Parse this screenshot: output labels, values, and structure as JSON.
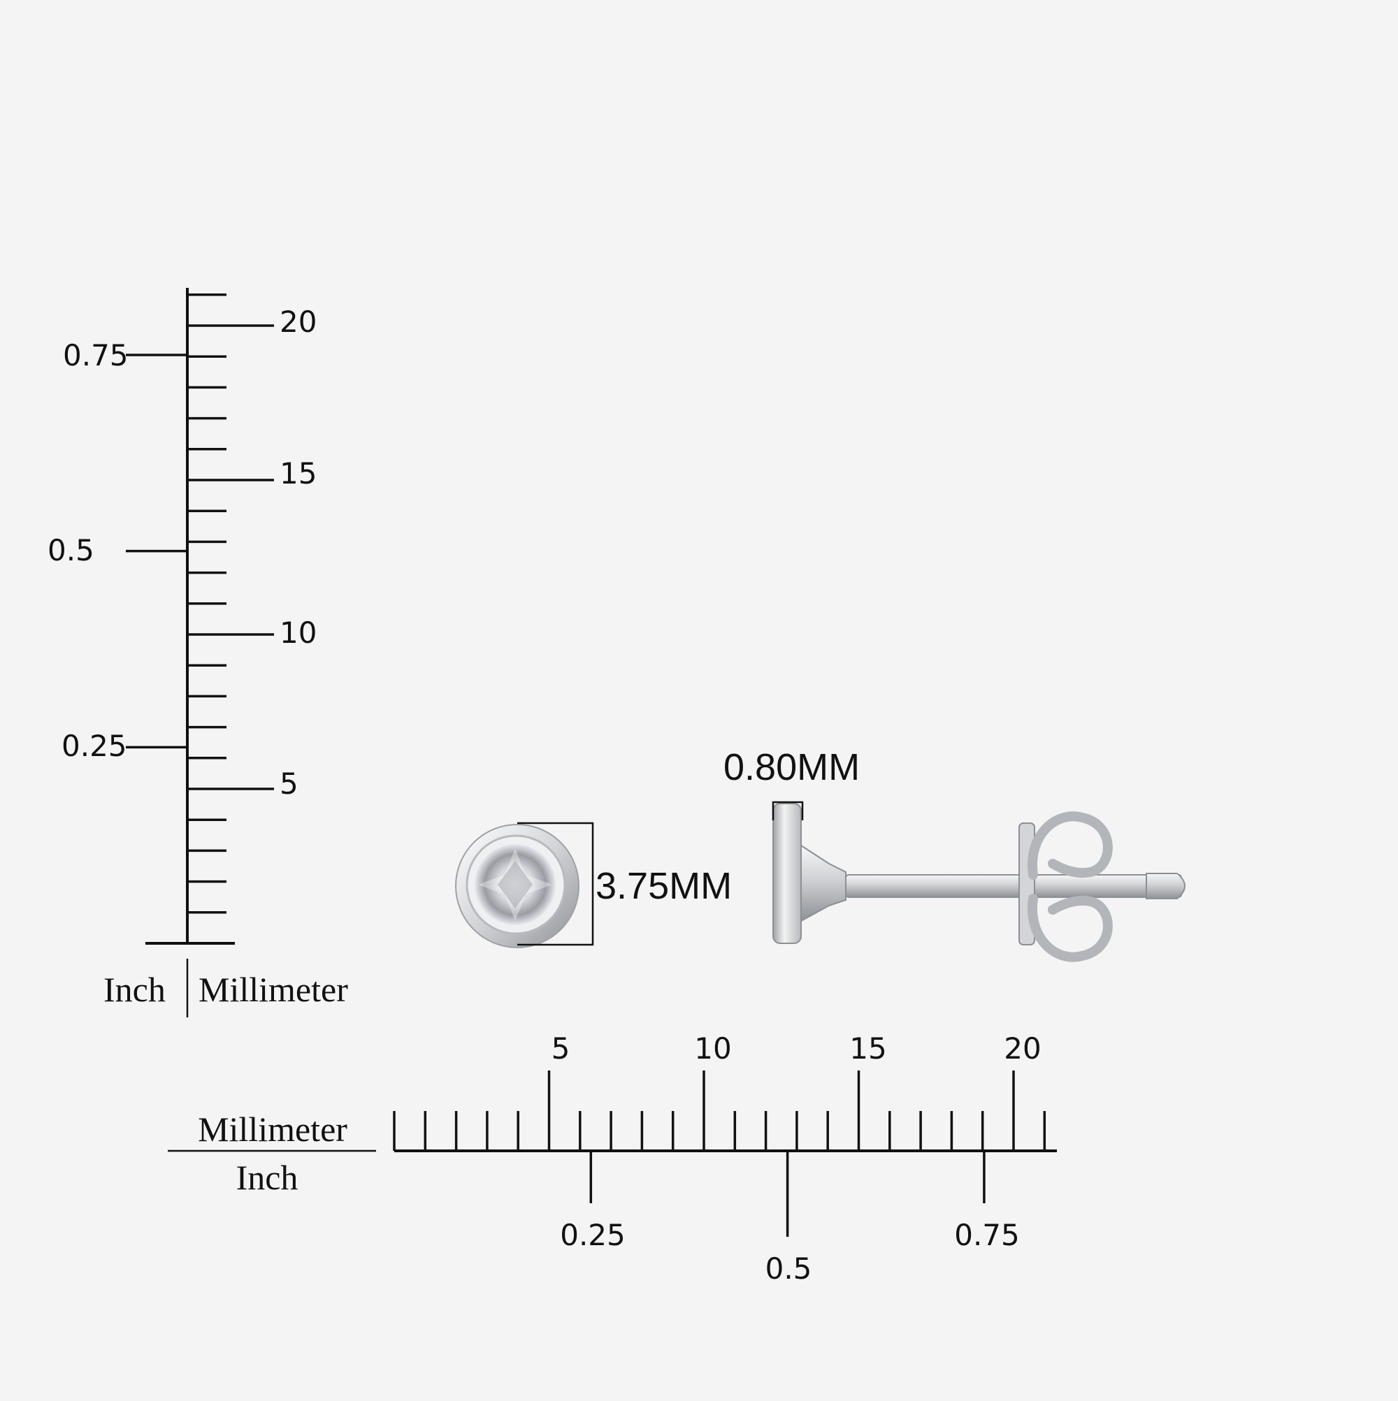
{
  "vertical_ruler": {
    "mm_labels": [
      "5",
      "10",
      "15",
      "20"
    ],
    "inch_labels": [
      "0.25",
      "0.5",
      "0.75"
    ],
    "inch_word": "Inch",
    "mm_word": "Millimeter"
  },
  "horizontal_ruler": {
    "mm_labels": [
      "5",
      "10",
      "15",
      "20"
    ],
    "inch_labels": [
      "0.25",
      "0.5",
      "0.75"
    ],
    "mm_word": "Millimeter",
    "inch_word": "Inch"
  },
  "product": {
    "diameter_label": "3.75MM",
    "thickness_label": "0.80MM"
  },
  "colors": {
    "background": "#f4f4f4",
    "ink": "#111111",
    "metal": "#d9dcdf"
  }
}
